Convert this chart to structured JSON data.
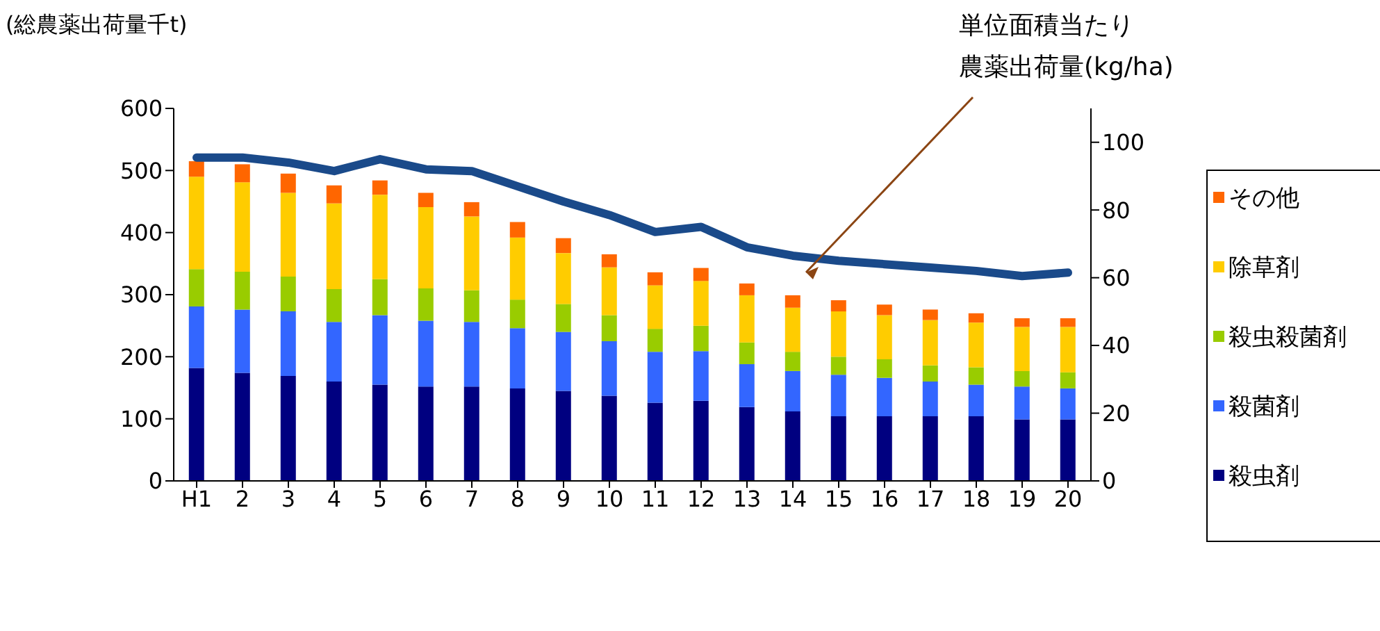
{
  "chart_data": {
    "type": "bar",
    "stacked": true,
    "ylabel": "(総農薬出荷量千t)",
    "y2label": "単位面積当たり農薬出荷量(kg/ha)",
    "categories": [
      "H1",
      "2",
      "3",
      "4",
      "5",
      "6",
      "7",
      "8",
      "9",
      "10",
      "11",
      "12",
      "13",
      "14",
      "15",
      "16",
      "17",
      "18",
      "19",
      "20"
    ],
    "series": [
      {
        "name": "殺虫剤",
        "color": "#000080",
        "values": [
          182,
          174,
          169,
          160,
          155,
          152,
          152,
          149,
          145,
          137,
          126,
          129,
          119,
          112,
          104,
          104,
          104,
          104,
          99,
          99
        ]
      },
      {
        "name": "殺菌剤",
        "color": "#3366ff",
        "values": [
          99,
          102,
          104,
          96,
          112,
          106,
          104,
          97,
          95,
          88,
          82,
          80,
          69,
          65,
          67,
          62,
          56,
          51,
          53,
          50
        ]
      },
      {
        "name": "殺虫殺菌剤",
        "color": "#99cc00",
        "values": [
          60,
          61,
          56,
          53,
          58,
          52,
          51,
          46,
          45,
          42,
          37,
          41,
          35,
          31,
          29,
          30,
          26,
          28,
          25,
          26
        ]
      },
      {
        "name": "除草剤",
        "color": "#ffcc00",
        "values": [
          149,
          144,
          135,
          138,
          136,
          131,
          119,
          100,
          82,
          77,
          70,
          72,
          76,
          71,
          73,
          71,
          73,
          72,
          71,
          73
        ]
      },
      {
        "name": "その他",
        "color": "#ff6600",
        "values": [
          25,
          29,
          31,
          29,
          23,
          23,
          23,
          25,
          24,
          21,
          21,
          21,
          19,
          20,
          18,
          17,
          17,
          15,
          14,
          14
        ]
      },
      {
        "type": "line",
        "axis": "y2",
        "color": "#1a4a8a",
        "values": [
          95.5,
          95.5,
          94,
          91.5,
          95,
          92,
          91.5,
          87,
          82.5,
          78.5,
          73.5,
          75,
          69,
          66.5,
          65,
          64,
          63,
          62,
          60.5,
          61.5
        ]
      }
    ],
    "ylim": [
      0,
      600
    ],
    "yticks": [
      0,
      100,
      200,
      300,
      400,
      500,
      600
    ],
    "y2lim": [
      0,
      110
    ],
    "y2ticks": [
      0,
      20,
      40,
      60,
      80,
      100
    ],
    "legend": "right",
    "grid": false
  }
}
